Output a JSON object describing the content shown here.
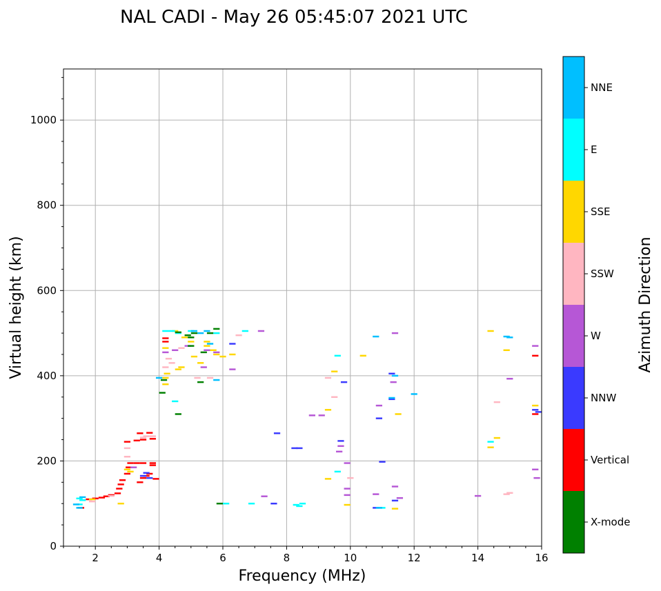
{
  "chart_data": {
    "type": "scatter",
    "title": "NAL CADI - May 26 05:45:07 2021 UTC",
    "xlabel": "Frequency (MHz)",
    "ylabel": "Virtual height (km)",
    "xlim": [
      1,
      16
    ],
    "ylim": [
      0,
      1120
    ],
    "x_ticks": [
      "2",
      "4",
      "6",
      "8",
      "10",
      "12",
      "14",
      "16"
    ],
    "y_ticks": [
      "0",
      "200",
      "400",
      "600",
      "800",
      "1000"
    ],
    "grid": true,
    "colorbar": {
      "title": "Azimuth Direction",
      "categories": [
        {
          "name": "X-mode",
          "color": "#008000"
        },
        {
          "name": "Vertical",
          "color": "#ff0000"
        },
        {
          "name": "NNW",
          "color": "#3a3aff"
        },
        {
          "name": "W",
          "color": "#b657d6"
        },
        {
          "name": "SSW",
          "color": "#ffb6c1"
        },
        {
          "name": "SSE",
          "color": "#ffd700"
        },
        {
          "name": "E",
          "color": "#00ffff"
        },
        {
          "name": "NNE",
          "color": "#00bfff"
        }
      ]
    },
    "series": [
      {
        "name": "Vertical",
        "points": [
          [
            1.55,
            90
          ],
          [
            1.8,
            110
          ],
          [
            2.0,
            112
          ],
          [
            2.2,
            114
          ],
          [
            2.35,
            117
          ],
          [
            2.5,
            120
          ],
          [
            2.7,
            124
          ],
          [
            2.75,
            135
          ],
          [
            2.8,
            145
          ],
          [
            2.85,
            155
          ],
          [
            3.0,
            170
          ],
          [
            3.05,
            185
          ],
          [
            3.1,
            195
          ],
          [
            3.4,
            150
          ],
          [
            3.5,
            160
          ],
          [
            3.6,
            165
          ],
          [
            3.7,
            170
          ],
          [
            3.8,
            190
          ],
          [
            3.3,
            195
          ],
          [
            3.5,
            195
          ],
          [
            3.8,
            195
          ],
          [
            3.3,
            248
          ],
          [
            3.5,
            250
          ],
          [
            3.8,
            252
          ],
          [
            3.4,
            265
          ],
          [
            3.7,
            266
          ],
          [
            3.0,
            245
          ],
          [
            3.9,
            158
          ],
          [
            4.2,
            480
          ],
          [
            4.2,
            488
          ],
          [
            15.8,
            447
          ],
          [
            15.8,
            310
          ]
        ]
      },
      {
        "name": "NNW",
        "points": [
          [
            3.5,
            165
          ],
          [
            3.7,
            160
          ],
          [
            3.6,
            172
          ],
          [
            8.25,
            230
          ],
          [
            8.4,
            230
          ],
          [
            7.7,
            265
          ],
          [
            9.8,
            385
          ],
          [
            10.8,
            90
          ],
          [
            10.9,
            300
          ],
          [
            11.3,
            345
          ],
          [
            11.3,
            405
          ],
          [
            11.4,
            107
          ],
          [
            11.0,
            198
          ],
          [
            6.3,
            475
          ],
          [
            15.8,
            320
          ],
          [
            15.9,
            315
          ],
          [
            7.6,
            100
          ],
          [
            9.7,
            247
          ]
        ]
      },
      {
        "name": "W",
        "points": [
          [
            3.2,
            185
          ],
          [
            4.2,
            455
          ],
          [
            4.5,
            460
          ],
          [
            4.9,
            470
          ],
          [
            5.4,
            420
          ],
          [
            5.5,
            460
          ],
          [
            5.8,
            455
          ],
          [
            6.3,
            415
          ],
          [
            7.2,
            505
          ],
          [
            8.8,
            307
          ],
          [
            9.1,
            307
          ],
          [
            9.9,
            120
          ],
          [
            9.9,
            135
          ],
          [
            9.9,
            195
          ],
          [
            10.8,
            122
          ],
          [
            10.9,
            330
          ],
          [
            11.4,
            140
          ],
          [
            11.35,
            385
          ],
          [
            11.4,
            500
          ],
          [
            14.0,
            118
          ],
          [
            15.0,
            393
          ],
          [
            15.8,
            180
          ],
          [
            15.85,
            160
          ],
          [
            15.8,
            470
          ],
          [
            9.65,
            222
          ],
          [
            9.7,
            235
          ],
          [
            11.55,
            113
          ],
          [
            7.3,
            117
          ]
        ]
      },
      {
        "name": "SSW",
        "points": [
          [
            1.9,
            105
          ],
          [
            2.5,
            118
          ],
          [
            3.0,
            210
          ],
          [
            3.0,
            230
          ],
          [
            3.5,
            255
          ],
          [
            3.6,
            258
          ],
          [
            3.8,
            258
          ],
          [
            4.2,
            420
          ],
          [
            4.3,
            440
          ],
          [
            4.4,
            430
          ],
          [
            4.7,
            465
          ],
          [
            5.2,
            395
          ],
          [
            5.6,
            395
          ],
          [
            9.5,
            350
          ],
          [
            9.3,
            395
          ],
          [
            14.6,
            338
          ],
          [
            14.9,
            122
          ],
          [
            15.0,
            125
          ],
          [
            6.5,
            495
          ],
          [
            10.0,
            160
          ]
        ]
      },
      {
        "name": "SSE",
        "points": [
          [
            1.9,
            110
          ],
          [
            3.0,
            180
          ],
          [
            3.1,
            175
          ],
          [
            2.8,
            100
          ],
          [
            4.2,
            380
          ],
          [
            4.2,
            395
          ],
          [
            4.25,
            405
          ],
          [
            4.2,
            465
          ],
          [
            4.6,
            415
          ],
          [
            4.7,
            420
          ],
          [
            4.8,
            490
          ],
          [
            5.1,
            445
          ],
          [
            5.3,
            430
          ],
          [
            5.5,
            470
          ],
          [
            5.5,
            480
          ],
          [
            5.7,
            460
          ],
          [
            5.8,
            450
          ],
          [
            6.0,
            445
          ],
          [
            6.3,
            450
          ],
          [
            9.5,
            410
          ],
          [
            9.3,
            320
          ],
          [
            9.3,
            158
          ],
          [
            10.4,
            447
          ],
          [
            11.5,
            310
          ],
          [
            11.4,
            88
          ],
          [
            14.6,
            254
          ],
          [
            14.4,
            232
          ],
          [
            14.9,
            460
          ],
          [
            14.4,
            505
          ],
          [
            15.8,
            330
          ],
          [
            9.9,
            97
          ],
          [
            4.5,
            505
          ],
          [
            5.0,
            480
          ]
        ]
      },
      {
        "name": "E",
        "points": [
          [
            1.5,
            112
          ],
          [
            1.5,
            98
          ],
          [
            1.6,
            108
          ],
          [
            4.2,
            505
          ],
          [
            4.4,
            505
          ],
          [
            4.6,
            500
          ],
          [
            5.0,
            505
          ],
          [
            6.7,
            505
          ],
          [
            8.3,
            97
          ],
          [
            8.5,
            100
          ],
          [
            8.4,
            94
          ],
          [
            9.6,
            447
          ],
          [
            9.6,
            175
          ],
          [
            11.0,
            90
          ],
          [
            14.4,
            245
          ],
          [
            6.1,
            100
          ],
          [
            6.9,
            100
          ],
          [
            5.8,
            500
          ],
          [
            4.5,
            340
          ]
        ]
      },
      {
        "name": "NNE",
        "points": [
          [
            1.4,
            98
          ],
          [
            1.5,
            90
          ],
          [
            1.6,
            115
          ],
          [
            5.1,
            505
          ],
          [
            5.3,
            500
          ],
          [
            5.5,
            505
          ],
          [
            10.8,
            492
          ],
          [
            11.4,
            400
          ],
          [
            11.3,
            348
          ],
          [
            12.0,
            357
          ],
          [
            14.9,
            492
          ],
          [
            15.0,
            490
          ],
          [
            10.9,
            90
          ],
          [
            5.8,
            390
          ],
          [
            5.6,
            475
          ],
          [
            4.0,
            395
          ]
        ]
      },
      {
        "name": "X-mode",
        "points": [
          [
            4.1,
            360
          ],
          [
            4.15,
            390
          ],
          [
            4.6,
            502
          ],
          [
            4.9,
            495
          ],
          [
            5.0,
            490
          ],
          [
            5.1,
            500
          ],
          [
            5.0,
            470
          ],
          [
            5.4,
            455
          ],
          [
            5.3,
            385
          ],
          [
            5.8,
            510
          ],
          [
            5.6,
            500
          ],
          [
            5.9,
            100
          ],
          [
            4.6,
            310
          ]
        ]
      }
    ]
  }
}
